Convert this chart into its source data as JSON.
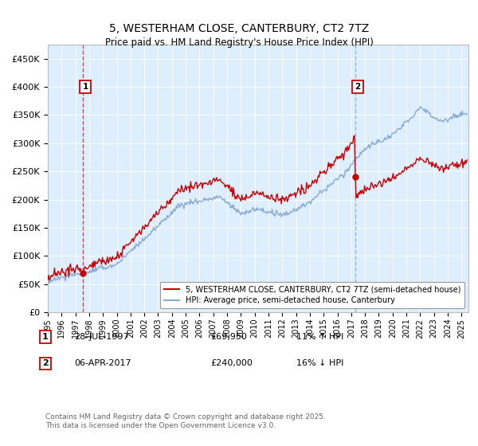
{
  "title": "5, WESTERHAM CLOSE, CANTERBURY, CT2 7TZ",
  "subtitle": "Price paid vs. HM Land Registry's House Price Index (HPI)",
  "legend_line1": "5, WESTERHAM CLOSE, CANTERBURY, CT2 7TZ (semi-detached house)",
  "legend_line2": "HPI: Average price, semi-detached house, Canterbury",
  "annotation1_label": "1",
  "annotation1_date": "28-JUL-1997",
  "annotation1_price": "£69,950",
  "annotation1_hpi": "11% ↑ HPI",
  "annotation2_label": "2",
  "annotation2_date": "06-APR-2017",
  "annotation2_price": "£240,000",
  "annotation2_hpi": "16% ↓ HPI",
  "footnote": "Contains HM Land Registry data © Crown copyright and database right 2025.\nThis data is licensed under the Open Government Licence v3.0.",
  "ylim": [
    0,
    475000
  ],
  "xlim_start": 1995.0,
  "xlim_end": 2025.5,
  "sale1_x": 1997.57,
  "sale1_y": 69950,
  "sale2_x": 2017.27,
  "sale2_y": 240000,
  "background_color": "#ddeeff",
  "grid_color": "#ffffff",
  "red_line_color": "#cc0000",
  "blue_line_color": "#88aad4",
  "dash1_color": "#cc0000",
  "dash2_color": "#8899bb"
}
